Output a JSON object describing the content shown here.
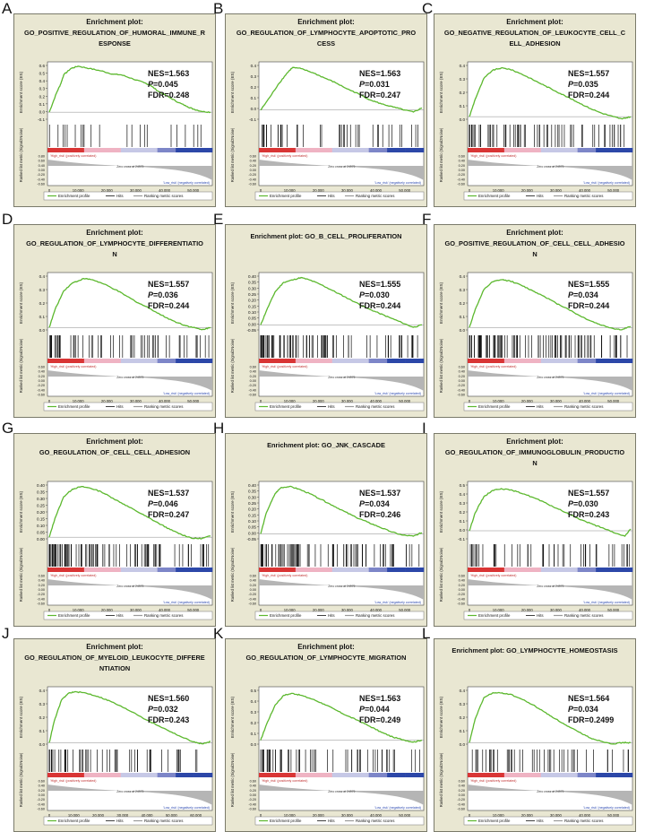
{
  "figure": {
    "common": {
      "ylabel_es": "Enrichment score (ES)",
      "ylabel_rank": "Ranked list metric (Signal2Noise)",
      "xlabel": "Rank in Ordered Dataset",
      "high_label": "'High_risk' (positively correlated)",
      "low_label": "'Low_risk' (negatively correlated)",
      "zero_cross": "Zero cross at 24979",
      "legend": [
        "Enrichment profile",
        "Hits",
        "Ranking metric scores"
      ],
      "colors": {
        "bg": "#e9e7d2",
        "line": "#5cb82e",
        "hits": "#111111",
        "fill": "#b5b5b5",
        "red": "#d93535",
        "pink": "#efb3c3",
        "lav": "#c6c8e6",
        "blue": "#2c47a8"
      }
    },
    "panels": [
      {
        "letter": "A",
        "title_lines": [
          "Enrichment plot:",
          "GO_POSITIVE_REGULATION_OF_HUMORAL_IMMUNE_R",
          "ESPONSE"
        ],
        "nes": "NES=1.563",
        "p": "0.045",
        "fdr": "FDR=0.248",
        "p_prefix": "P",
        "p_eq": "=",
        "yticks": [
          "0.6",
          "0.5",
          "0.4",
          "0.3",
          "0.2",
          "0.1",
          "0.0",
          "-0.1"
        ],
        "rank_ticks": [
          "0.80",
          "0.60",
          "0.40",
          "0.00",
          "-0.20",
          "-0.40",
          "-0.60"
        ],
        "xticks": [
          "0",
          "10,000",
          "20,000",
          "30,000",
          "40,000",
          "50,000"
        ]
      },
      {
        "letter": "B",
        "title_lines": [
          "Enrichment plot:",
          "GO_REGULATION_OF_LYMPHOCYTE_APOPTOTIC_PRO",
          "CESS"
        ],
        "nes": "NES=1.563",
        "p": "0.031",
        "fdr": "FDR=0.247",
        "p_prefix": "P",
        "p_eq": "=",
        "yticks": [
          "0.4",
          "0.3",
          "0.2",
          "0.1",
          "0.0",
          "-0.1"
        ],
        "rank_ticks": [
          "0.60",
          "0.40",
          "0.20",
          "0.00",
          "-0.20",
          "-0.40",
          "-0.60"
        ],
        "xticks": [
          "0",
          "10,000",
          "20,000",
          "30,000",
          "40,000",
          "50,000"
        ]
      },
      {
        "letter": "C",
        "title_lines": [
          "Enrichment plot:",
          "GO_NEGATIVE_REGULATION_OF_LEUKOCYTE_CELL_C",
          "ELL_ADHESION"
        ],
        "nes": "NES=1.557",
        "p": "0.035",
        "fdr": "FDR=0.244",
        "p_prefix": "P",
        "p_eq": "=",
        "yticks": [
          "0.4",
          "0.3",
          "0.2",
          "0.1",
          "0.0"
        ],
        "rank_ticks": [
          "0.60",
          "0.40",
          "0.20",
          "0.00",
          "-0.20",
          "-0.40",
          "-0.60"
        ],
        "xticks": [
          "0",
          "10,000",
          "20,000",
          "30,000",
          "40,000",
          "50,000"
        ]
      },
      {
        "letter": "D",
        "title_lines": [
          "Enrichment plot:",
          "GO_REGULATION_OF_LYMPHOCYTE_DIFFERENTIATIO",
          "N"
        ],
        "nes": "NES=1.557",
        "p": "0.036",
        "fdr": "FDR=0.244",
        "p_prefix": "P",
        "p_eq": "=",
        "yticks": [
          "0.4",
          "0.3",
          "0.2",
          "0.1",
          "0.0"
        ],
        "rank_ticks": [
          "0.60",
          "0.40",
          "0.20",
          "0.00",
          "-0.20",
          "-0.40",
          "-0.60"
        ],
        "xticks": [
          "0",
          "10,000",
          "20,000",
          "30,000",
          "40,000",
          "50,000"
        ]
      },
      {
        "letter": "E",
        "title_lines": [
          "Enrichment plot: GO_B_CELL_PROLIFERATION"
        ],
        "nes": "NES=1.555",
        "p": "0.030",
        "fdr": "FDR=0.244",
        "p_prefix": "P",
        "p_eq": "=",
        "yticks": [
          "0.40",
          "0.35",
          "0.30",
          "0.25",
          "0.20",
          "0.15",
          "0.10",
          "0.05",
          "0.00",
          "-0.05"
        ],
        "rank_ticks": [
          "0.60",
          "0.40",
          "0.20",
          "0.00",
          "-0.20",
          "-0.40",
          "-0.60"
        ],
        "xticks": [
          "0",
          "10,000",
          "20,000",
          "30,000",
          "40,000",
          "50,000"
        ]
      },
      {
        "letter": "F",
        "title_lines": [
          "Enrichment plot:",
          "GO_POSITIVE_REGULATION_OF_CELL_CELL_ADHESIO",
          "N"
        ],
        "nes": "NES=1.555",
        "p": "0.034",
        "fdr": "FDR=0.244",
        "p_prefix": "P",
        "p_eq": "=",
        "yticks": [
          "0.4",
          "0.3",
          "0.2",
          "0.1",
          "0.0"
        ],
        "rank_ticks": [
          "0.60",
          "0.40",
          "0.20",
          "0.00",
          "-0.20",
          "-0.40",
          "-0.60"
        ],
        "xticks": [
          "0",
          "10,000",
          "20,000",
          "30,000",
          "40,000",
          "50,000"
        ]
      },
      {
        "letter": "G",
        "title_lines": [
          "Enrichment plot:",
          "GO_REGULATION_OF_CELL_CELL_ADHESION"
        ],
        "nes": "NES=1.537",
        "p": "0.046",
        "fdr": "FDR=0.247",
        "p_prefix": "P",
        "p_eq": "=",
        "yticks": [
          "0.40",
          "0.35",
          "0.30",
          "0.25",
          "0.20",
          "0.15",
          "0.10",
          "0.05",
          "0.00"
        ],
        "rank_ticks": [
          "0.60",
          "0.40",
          "0.20",
          "0.00",
          "-0.20",
          "-0.40",
          "-0.60"
        ],
        "xticks": [
          "0",
          "10,000",
          "20,000",
          "30,000",
          "40,000",
          "50,000"
        ]
      },
      {
        "letter": "H",
        "title_lines": [
          "Enrichment plot: GO_JNK_CASCADE"
        ],
        "nes": "NES=1.537",
        "p": "0.034",
        "fdr": "FDR=0.246",
        "p_prefix": "P",
        "p_eq": "=",
        "yticks": [
          "0.40",
          "0.35",
          "0.30",
          "0.25",
          "0.20",
          "0.15",
          "0.10",
          "0.05",
          "0.00",
          "-0.05"
        ],
        "rank_ticks": [
          "0.60",
          "0.40",
          "0.20",
          "0.00",
          "-0.20",
          "-0.40",
          "-0.60"
        ],
        "xticks": [
          "0",
          "10,000",
          "20,000",
          "30,000",
          "40,000",
          "50,000"
        ]
      },
      {
        "letter": "I",
        "title_lines": [
          "Enrichment plot:",
          "GO_REGULATION_OF_IMMUNOGLOBULIN_PRODUCTIO",
          "N"
        ],
        "nes": "NES=1.557",
        "p": "0.030",
        "fdr": "FDR=0.243",
        "p_prefix": "P",
        "p_eq": "=",
        "yticks": [
          "0.5",
          "0.4",
          "0.3",
          "0.2",
          "0.1",
          "0.0",
          "-0.1"
        ],
        "rank_ticks": [
          "0.60",
          "0.40",
          "0.20",
          "0.00",
          "-0.20",
          "-0.40",
          "-0.60"
        ],
        "xticks": [
          "0",
          "10,000",
          "20,000",
          "30,000",
          "40,000",
          "50,000"
        ]
      },
      {
        "letter": "J",
        "title_lines": [
          "Enrichment plot:",
          "GO_REGULATION_OF_MYELOID_LEUKOCYTE_DIFFERE",
          "NTIATION"
        ],
        "nes": "NES=1.560",
        "p": "0.032",
        "fdr": "FDR=0.243",
        "p_prefix": "P",
        "p_eq": "=",
        "yticks": [
          "0.4",
          "0.3",
          "0.2",
          "0.1",
          "0.0"
        ],
        "rank_ticks": [
          "0.60",
          "0.40",
          "0.20",
          "0.00",
          "-0.20",
          "-0.40",
          "-0.60"
        ],
        "xticks": [
          "0",
          "10,000",
          "20,000",
          "30,000",
          "40,000",
          "50,000",
          "60,000"
        ]
      },
      {
        "letter": "K",
        "title_lines": [
          "Enrichment plot:",
          "GO_REGULATION_OF_LYMPHOCYTE_MIGRATION"
        ],
        "nes": "NES=1.563",
        "p": "0.044",
        "fdr": "FDR=0.249",
        "p_prefix": "P",
        "p_eq": "=",
        "yticks": [
          "0.5",
          "0.4",
          "0.3",
          "0.2",
          "0.1",
          "0.0"
        ],
        "rank_ticks": [
          "0.60",
          "0.40",
          "0.20",
          "0.00",
          "-0.20",
          "-0.40",
          "-0.60"
        ],
        "xticks": [
          "0",
          "10,000",
          "20,000",
          "30,000",
          "40,000",
          "50,000"
        ]
      },
      {
        "letter": "L",
        "title_lines": [
          "Enrichment plot: GO_LYMPHOCYTE_HOMEOSTASIS"
        ],
        "nes": "NES=1.564",
        "p": "0.034",
        "fdr": "FDR=0.2499",
        "p_prefix": "P",
        "p_eq": "=",
        "yticks": [
          "0.4",
          "0.3",
          "0.2",
          "0.1",
          "0.0"
        ],
        "rank_ticks": [
          "0.60",
          "0.40",
          "0.20",
          "0.00",
          "-0.20",
          "-0.40",
          "-0.60"
        ],
        "xticks": [
          "0",
          "10,000",
          "20,000",
          "30,000",
          "40,000",
          "50,000"
        ]
      }
    ]
  },
  "chart_data": [
    {
      "type": "line",
      "panel": "A",
      "title": "GO_POSITIVE_REGULATION_OF_HUMORAL_IMMUNE_RESPONSE",
      "xlabel": "Rank in Ordered Dataset",
      "ylabel": "Enrichment score (ES)",
      "xlim": [
        0,
        56000
      ],
      "ylim": [
        -0.1,
        0.6
      ],
      "x": [
        0,
        2500,
        4000,
        5000,
        7500,
        10000,
        14000,
        18000,
        22000,
        25000,
        29000,
        33000,
        35000,
        38000,
        42000,
        45000,
        48000,
        50000,
        53000,
        56000
      ],
      "y": [
        0.0,
        0.24,
        0.36,
        0.47,
        0.55,
        0.58,
        0.55,
        0.52,
        0.48,
        0.47,
        0.42,
        0.37,
        0.34,
        0.26,
        0.18,
        0.12,
        0.07,
        0.04,
        0.01,
        0.0
      ]
    },
    {
      "type": "line",
      "panel": "B",
      "title": "GO_REGULATION_OF_LYMPHOCYTE_APOPTOTIC_PROCESS",
      "xlabel": "Rank in Ordered Dataset",
      "ylabel": "Enrichment score (ES)",
      "xlim": [
        0,
        56000
      ],
      "ylim": [
        -0.1,
        0.45
      ],
      "x": [
        0,
        3000,
        6000,
        9000,
        11000,
        14000,
        18000,
        22000,
        26000,
        30000,
        34000,
        38000,
        42000,
        46000,
        50000,
        53000,
        56000
      ],
      "y": [
        0.0,
        0.12,
        0.25,
        0.36,
        0.42,
        0.41,
        0.37,
        0.32,
        0.27,
        0.21,
        0.16,
        0.1,
        0.06,
        0.03,
        0.0,
        -0.02,
        0.02
      ]
    },
    {
      "type": "line",
      "panel": "C",
      "title": "GO_NEGATIVE_REGULATION_OF_LEUKOCYTE_CELL_CELL_ADHESION",
      "xlabel": "Rank in Ordered Dataset",
      "ylabel": "Enrichment score (ES)",
      "xlim": [
        0,
        56000
      ],
      "ylim": [
        -0.03,
        0.45
      ],
      "x": [
        0,
        2000,
        5000,
        8000,
        11000,
        14000,
        18000,
        22000,
        26000,
        30000,
        34000,
        38000,
        42000,
        46000,
        50000,
        53000,
        56000
      ],
      "y": [
        0.0,
        0.15,
        0.33,
        0.4,
        0.42,
        0.41,
        0.37,
        0.32,
        0.27,
        0.22,
        0.17,
        0.12,
        0.07,
        0.03,
        0.0,
        -0.02,
        0.0
      ]
    },
    {
      "type": "line",
      "panel": "D",
      "title": "GO_REGULATION_OF_LYMPHOCYTE_DIFFERENTIATION",
      "xlabel": "Rank in Ordered Dataset",
      "ylabel": "Enrichment score (ES)",
      "xlim": [
        0,
        56000
      ],
      "ylim": [
        -0.03,
        0.47
      ],
      "x": [
        0,
        2000,
        5000,
        8000,
        12000,
        15000,
        19000,
        23000,
        27000,
        31000,
        35000,
        39000,
        43000,
        47000,
        50000,
        53000,
        56000
      ],
      "y": [
        0.0,
        0.16,
        0.33,
        0.4,
        0.44,
        0.43,
        0.39,
        0.34,
        0.28,
        0.22,
        0.17,
        0.11,
        0.06,
        0.02,
        0.0,
        -0.02,
        0.0
      ]
    },
    {
      "type": "line",
      "panel": "E",
      "title": "GO_B_CELL_PROLIFERATION",
      "xlabel": "Rank in Ordered Dataset",
      "ylabel": "Enrichment score (ES)",
      "xlim": [
        0,
        56000
      ],
      "ylim": [
        -0.05,
        0.42
      ],
      "x": [
        0,
        2000,
        5000,
        8000,
        11000,
        14000,
        17000,
        21000,
        25000,
        29000,
        33000,
        37000,
        41000,
        45000,
        49000,
        53000,
        56000
      ],
      "y": [
        0.0,
        0.12,
        0.28,
        0.36,
        0.38,
        0.4,
        0.38,
        0.34,
        0.29,
        0.24,
        0.19,
        0.14,
        0.1,
        0.06,
        0.02,
        -0.02,
        0.0
      ]
    },
    {
      "type": "line",
      "panel": "F",
      "title": "GO_POSITIVE_REGULATION_OF_CELL_CELL_ADHESION",
      "xlabel": "Rank in Ordered Dataset",
      "ylabel": "Enrichment score (ES)",
      "xlim": [
        0,
        56000
      ],
      "ylim": [
        -0.03,
        0.47
      ],
      "x": [
        0,
        2000,
        5000,
        8000,
        11000,
        14000,
        18000,
        22000,
        26000,
        30000,
        34000,
        38000,
        42000,
        46000,
        50000,
        53000,
        56000
      ],
      "y": [
        0.0,
        0.16,
        0.34,
        0.41,
        0.43,
        0.42,
        0.38,
        0.33,
        0.28,
        0.22,
        0.17,
        0.11,
        0.06,
        0.02,
        -0.01,
        -0.02,
        0.01
      ]
    },
    {
      "type": "line",
      "panel": "G",
      "title": "GO_REGULATION_OF_CELL_CELL_ADHESION",
      "xlabel": "Rank in Ordered Dataset",
      "ylabel": "Enrichment score (ES)",
      "xlim": [
        0,
        56000
      ],
      "ylim": [
        -0.02,
        0.42
      ],
      "x": [
        0,
        2000,
        5000,
        8000,
        11000,
        14000,
        18000,
        22000,
        26000,
        30000,
        34000,
        38000,
        42000,
        46000,
        50000,
        53000,
        56000
      ],
      "y": [
        0.0,
        0.15,
        0.32,
        0.38,
        0.4,
        0.39,
        0.36,
        0.31,
        0.26,
        0.21,
        0.16,
        0.11,
        0.06,
        0.02,
        -0.01,
        -0.01,
        0.01
      ]
    },
    {
      "type": "line",
      "panel": "H",
      "title": "GO_JNK_CASCADE",
      "xlabel": "Rank in Ordered Dataset",
      "ylabel": "Enrichment score (ES)",
      "xlim": [
        0,
        56000
      ],
      "ylim": [
        -0.05,
        0.42
      ],
      "x": [
        0,
        2000,
        5000,
        7000,
        10000,
        13000,
        17000,
        21000,
        25000,
        29000,
        33000,
        37000,
        41000,
        45000,
        49000,
        53000,
        56000
      ],
      "y": [
        0.0,
        0.18,
        0.34,
        0.39,
        0.4,
        0.38,
        0.34,
        0.29,
        0.24,
        0.19,
        0.14,
        0.1,
        0.06,
        0.02,
        -0.01,
        -0.02,
        0.01
      ]
    },
    {
      "type": "line",
      "panel": "I",
      "title": "GO_REGULATION_OF_IMMUNOGLOBULIN_PRODUCTION",
      "xlabel": "Rank in Ordered Dataset",
      "ylabel": "Enrichment score (ES)",
      "xlim": [
        0,
        56000
      ],
      "ylim": [
        -0.1,
        0.52
      ],
      "x": [
        0,
        2000,
        5000,
        8000,
        11000,
        15000,
        19000,
        23000,
        27000,
        31000,
        35000,
        39000,
        43000,
        47000,
        51000,
        54000,
        56000
      ],
      "y": [
        0.0,
        0.2,
        0.38,
        0.45,
        0.47,
        0.45,
        0.41,
        0.36,
        0.3,
        0.24,
        0.18,
        0.12,
        0.07,
        0.02,
        -0.03,
        -0.06,
        0.02
      ]
    },
    {
      "type": "line",
      "panel": "J",
      "title": "GO_REGULATION_OF_MYELOID_LEUKOCYTE_DIFFERENTIATION",
      "xlabel": "Rank in Ordered Dataset",
      "ylabel": "Enrichment score (ES)",
      "xlim": [
        0,
        66000
      ],
      "ylim": [
        -0.02,
        0.45
      ],
      "x": [
        0,
        2000,
        5000,
        8000,
        11000,
        15000,
        20000,
        25000,
        30000,
        35000,
        40000,
        45000,
        50000,
        55000,
        60000,
        63000,
        66000
      ],
      "y": [
        0.0,
        0.18,
        0.36,
        0.42,
        0.43,
        0.42,
        0.39,
        0.35,
        0.3,
        0.25,
        0.19,
        0.14,
        0.09,
        0.04,
        0.0,
        -0.01,
        0.01
      ]
    },
    {
      "type": "line",
      "panel": "K",
      "title": "GO_REGULATION_OF_LYMPHOCYTE_MIGRATION",
      "xlabel": "Rank in Ordered Dataset",
      "ylabel": "Enrichment score (ES)",
      "xlim": [
        0,
        56000
      ],
      "ylim": [
        -0.05,
        0.52
      ],
      "x": [
        0,
        2000,
        5000,
        8000,
        11000,
        14000,
        18000,
        22000,
        26000,
        30000,
        34000,
        38000,
        42000,
        46000,
        50000,
        53000,
        56000
      ],
      "y": [
        0.0,
        0.16,
        0.36,
        0.46,
        0.48,
        0.46,
        0.42,
        0.37,
        0.31,
        0.25,
        0.2,
        0.14,
        0.08,
        0.03,
        0.0,
        -0.02,
        0.0
      ]
    },
    {
      "type": "line",
      "panel": "L",
      "title": "GO_LYMPHOCYTE_HOMEOSTASIS",
      "xlabel": "Rank in Ordered Dataset",
      "ylabel": "Enrichment score (ES)",
      "xlim": [
        0,
        56000
      ],
      "ylim": [
        -0.02,
        0.45
      ],
      "x": [
        0,
        2000,
        5000,
        8000,
        11000,
        14000,
        18000,
        22000,
        26000,
        30000,
        34000,
        38000,
        42000,
        46000,
        50000,
        53000,
        56000
      ],
      "y": [
        0.0,
        0.2,
        0.38,
        0.42,
        0.42,
        0.41,
        0.37,
        0.32,
        0.26,
        0.2,
        0.14,
        0.09,
        0.04,
        0.01,
        -0.01,
        0.0,
        0.0
      ]
    }
  ]
}
